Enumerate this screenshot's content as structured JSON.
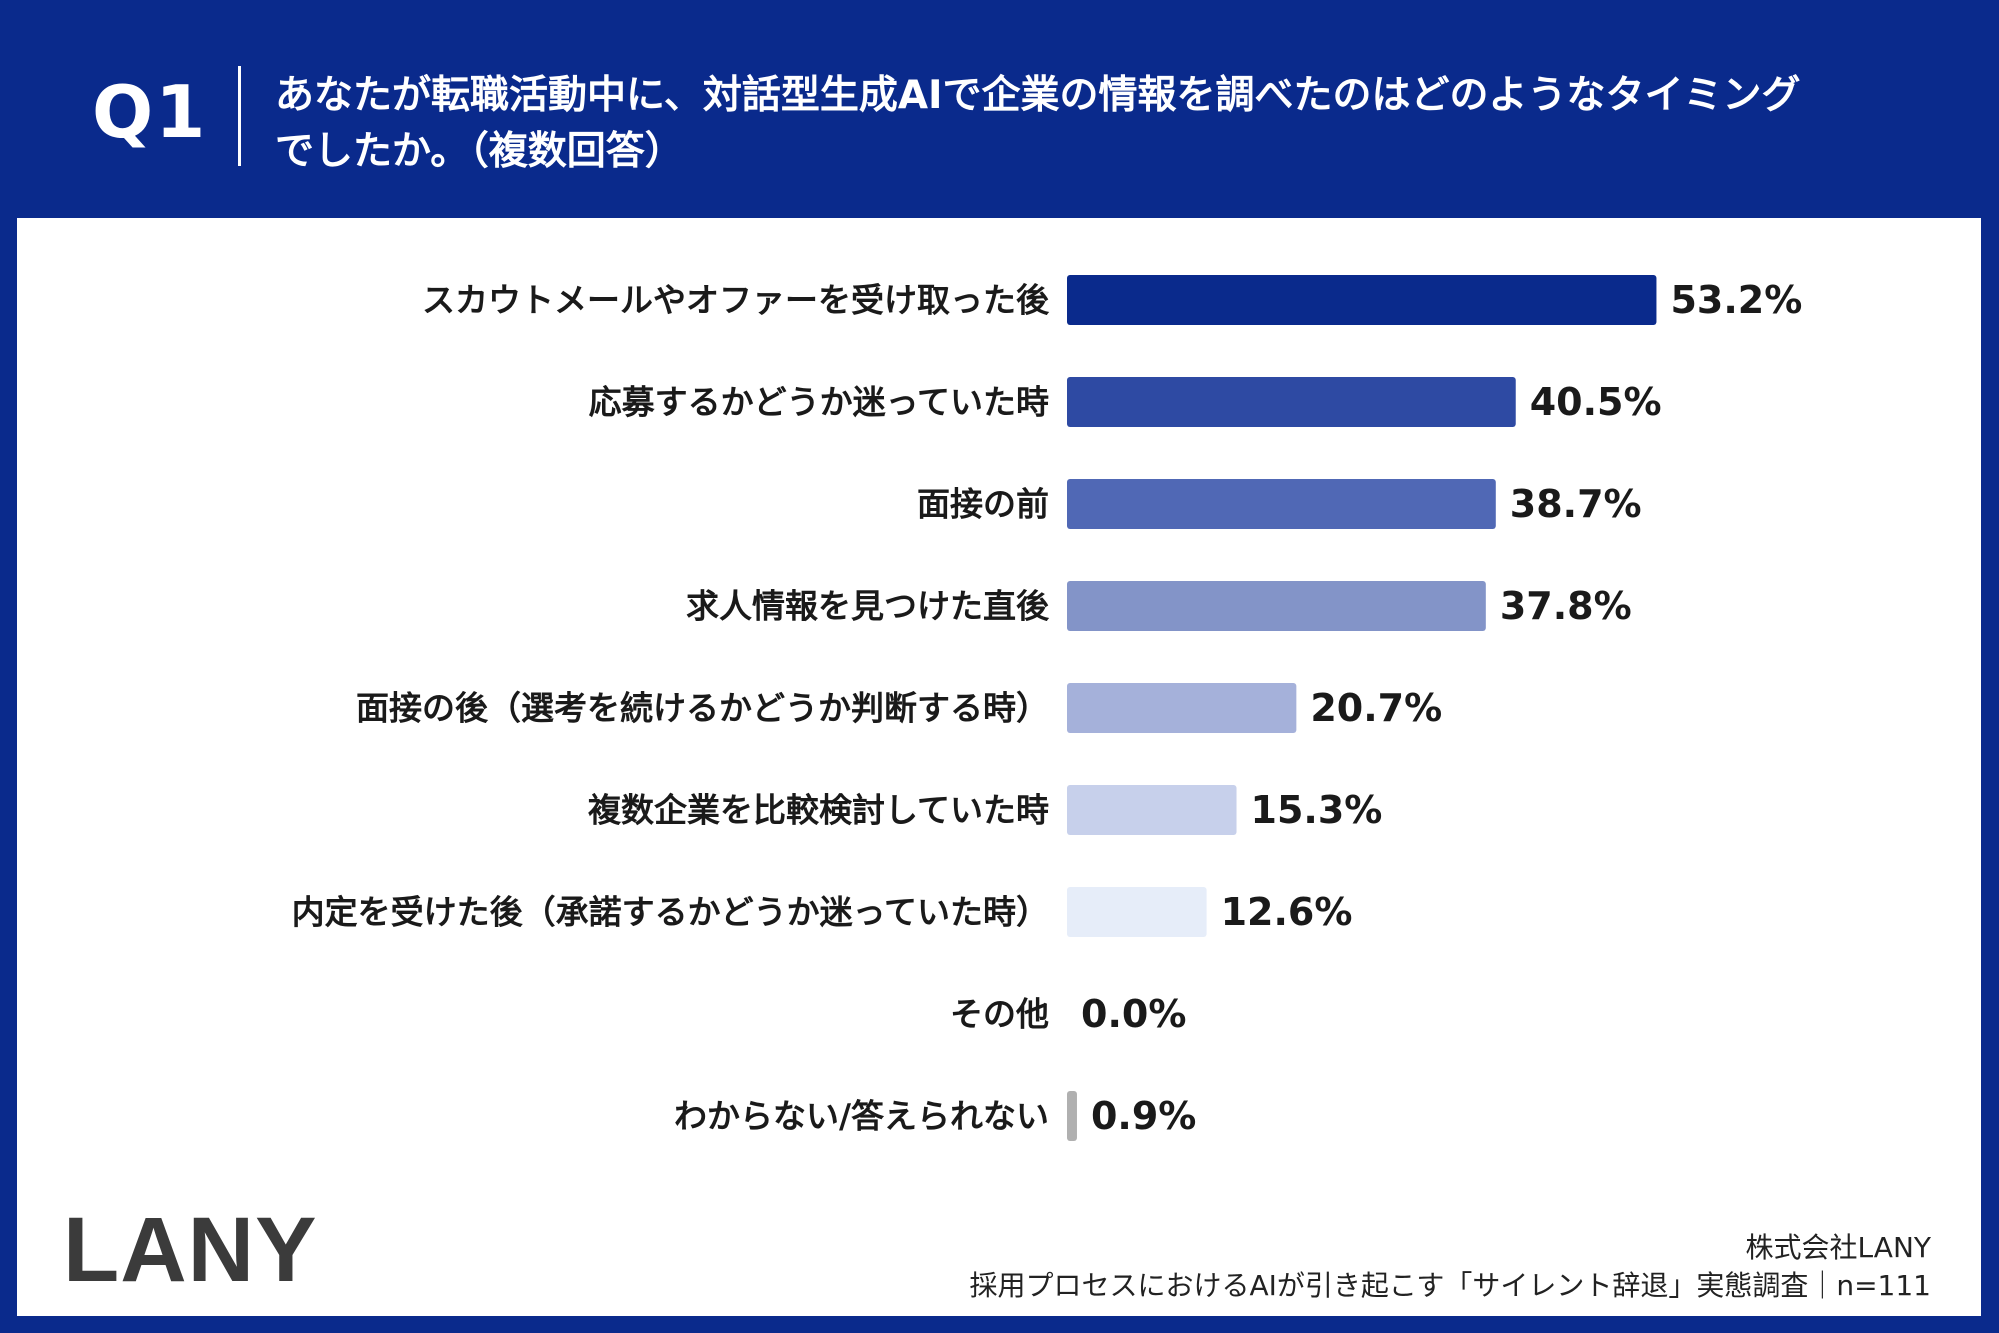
{
  "header": {
    "q_number": "Q1",
    "question": "あなたが転職活動中に、対話型生成AIで企業の情報を調べたのはどのようなタイミングでしたか。（複数回答）"
  },
  "chart_data": {
    "type": "bar",
    "orientation": "horizontal",
    "categories": [
      "スカウトメールやオファーを受け取った後",
      "応募するかどうか迷っていた時",
      "面接の前",
      "求人情報を見つけた直後",
      "面接の後（選考を続けるかどうか判断する時）",
      "複数企業を比較検討していた時",
      "内定を受けた後（承諾するかどうか迷っていた時）",
      "その他",
      "わからない/答えられない"
    ],
    "values": [
      53.2,
      40.5,
      38.7,
      37.8,
      20.7,
      15.3,
      12.6,
      0.0,
      0.9
    ],
    "value_labels": [
      "53.2%",
      "40.5%",
      "38.7%",
      "37.8%",
      "20.7%",
      "15.3%",
      "12.6%",
      "0.0%",
      "0.9%"
    ],
    "colors": [
      "#0a2a8c",
      "#2e4aa3",
      "#5068b5",
      "#8394c8",
      "#a5b1da",
      "#c7d0eb",
      "#e6edf9",
      "#ffffff",
      "#b0b0b0"
    ],
    "xlim": [
      0,
      60
    ],
    "grid": false,
    "legend": "none"
  },
  "footer": {
    "logo": "LANY",
    "company": "株式会社LANY",
    "source": "採用プロセスにおけるAIが引き起こす「サイレント辞退」実態調査｜n=111"
  }
}
